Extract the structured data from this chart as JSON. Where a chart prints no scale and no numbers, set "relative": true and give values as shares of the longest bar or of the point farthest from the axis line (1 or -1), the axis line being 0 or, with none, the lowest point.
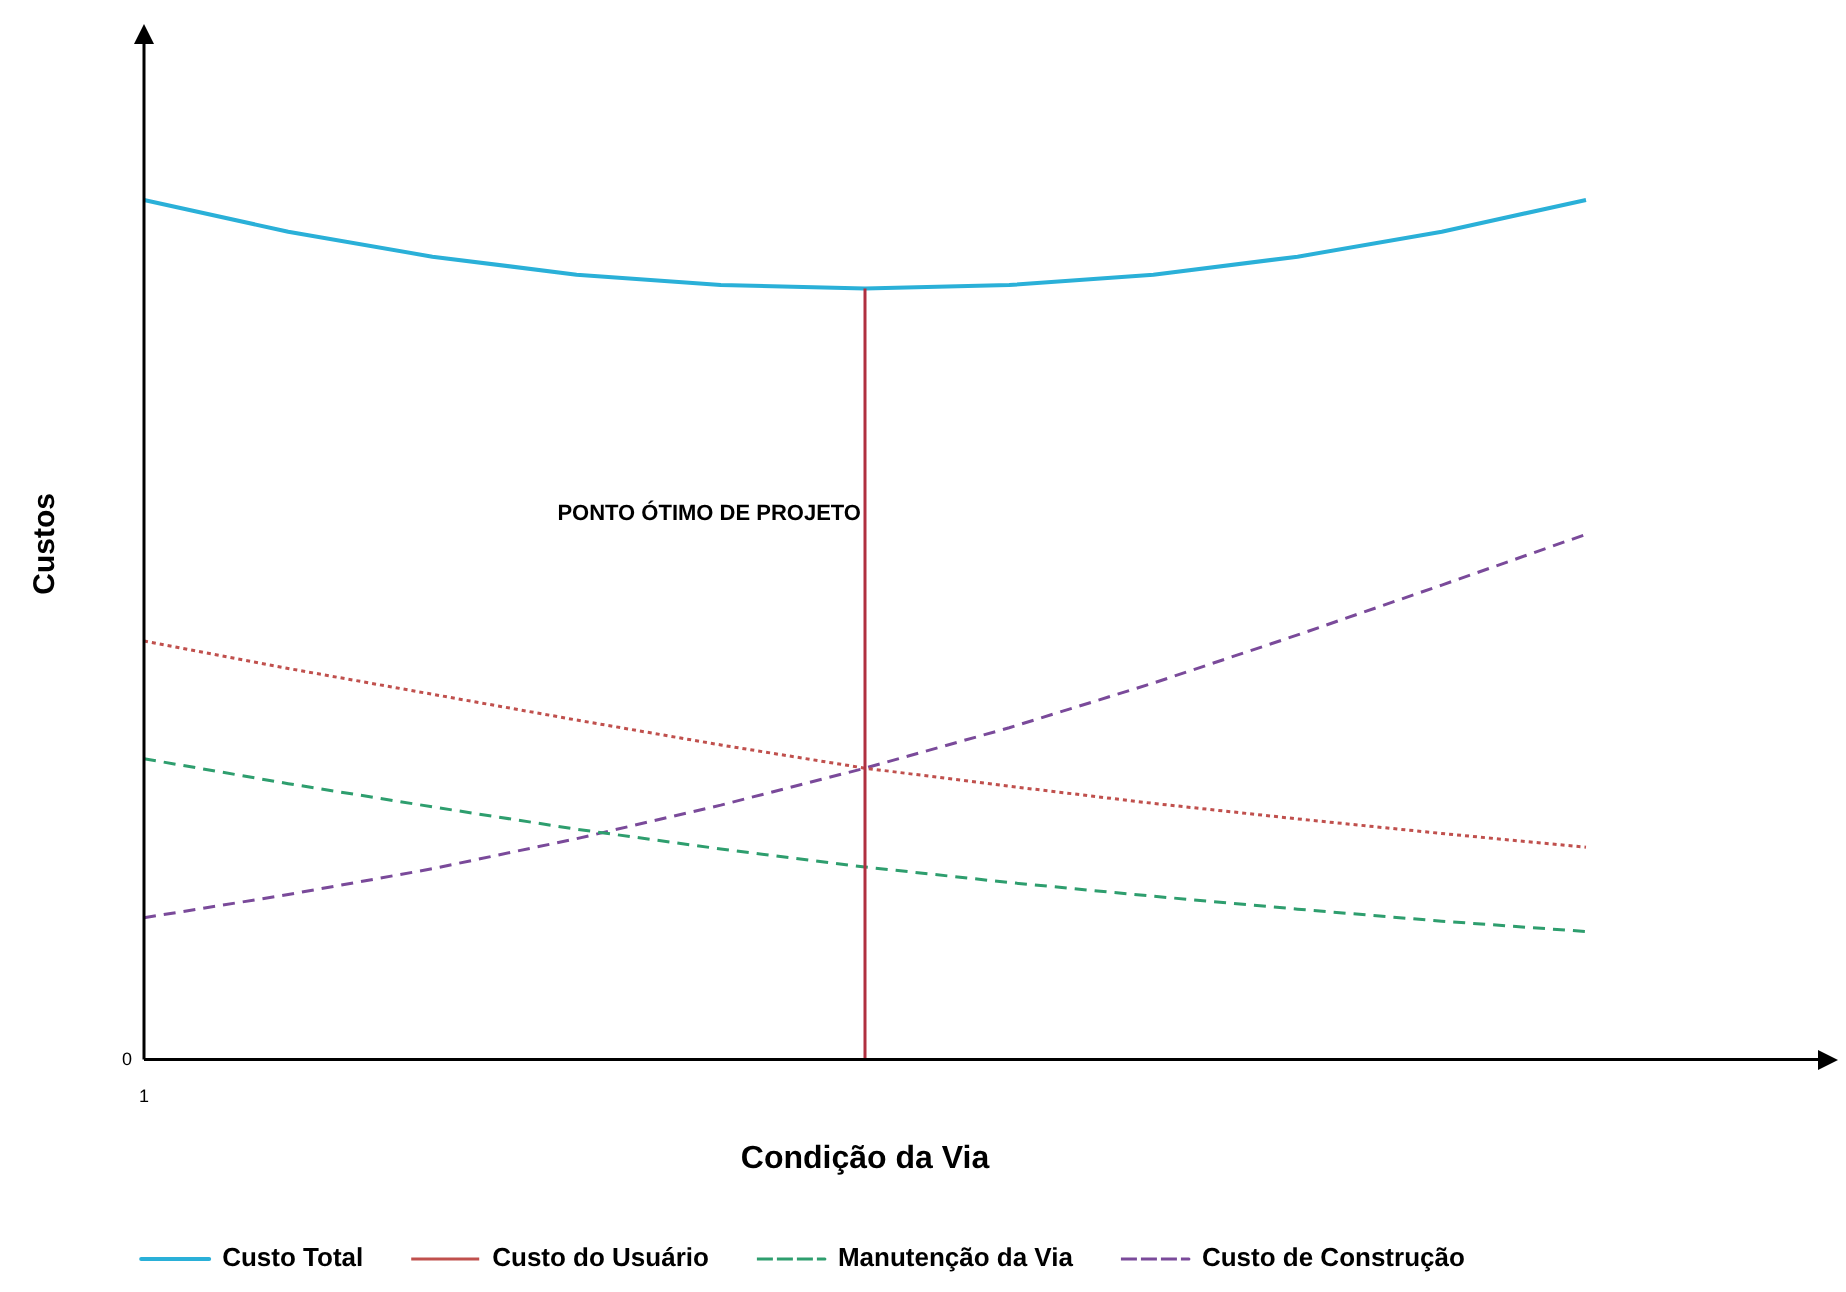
{
  "chart_data": {
    "type": "line",
    "relative": true,
    "xlabel": "Condição da Via",
    "ylabel": "Custos",
    "categories": [
      null,
      null,
      null,
      null,
      null,
      null,
      null,
      null,
      null,
      null,
      null
    ],
    "series": [
      {
        "name": "Custo Total",
        "color": "#2ab0d8",
        "line_style": "solid",
        "values": [
          1,
          0.963,
          0.934,
          0.913,
          0.901,
          0.897,
          0.901,
          0.913,
          0.934,
          0.963,
          1
        ]
      },
      {
        "name": "Custo do Usuário",
        "color": "#c0504d",
        "line_style": "dotted",
        "values": [
          0.487,
          0.455,
          0.425,
          0.395,
          0.366,
          0.339,
          0.318,
          0.298,
          0.28,
          0.263,
          0.247
        ]
      },
      {
        "name": "Manutenção da Via",
        "color": "#2e9e6e",
        "line_style": "dashed",
        "values": [
          0.35,
          0.321,
          0.294,
          0.268,
          0.245,
          0.224,
          0.206,
          0.19,
          0.175,
          0.161,
          0.149
        ]
      },
      {
        "name": "Custo de Construção",
        "color": "#7a4a9a",
        "line_style": "dashed",
        "values": [
          0.165,
          0.192,
          0.222,
          0.257,
          0.296,
          0.339,
          0.386,
          0.438,
          0.494,
          0.552,
          0.611
        ]
      }
    ],
    "ref_lines": [
      {
        "axis": "x",
        "label": "PONTO ÓTIMO DE PROJETO",
        "color": "#b03040"
      }
    ],
    "annotations": [
      "0",
      "1"
    ],
    "tick_labels": false,
    "grid": false,
    "legend": "bottom",
    "marker": "none"
  }
}
